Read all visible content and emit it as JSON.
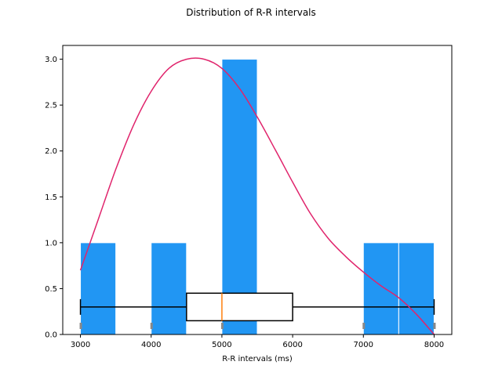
{
  "chart_data": {
    "type": "bar",
    "title": "Distribution of R-R intervals",
    "xlabel": "R-R intervals (ms)",
    "ylabel": "",
    "xlim": [
      2750,
      8250
    ],
    "ylim": [
      0,
      3.15
    ],
    "x_ticks": [
      3000,
      4000,
      5000,
      6000,
      7000,
      8000
    ],
    "y_ticks": [
      0.0,
      0.5,
      1.0,
      1.5,
      2.0,
      2.5,
      3.0
    ],
    "x_tick_labels": [
      "3000",
      "4000",
      "5000",
      "6000",
      "7000",
      "8000"
    ],
    "y_tick_labels": [
      "0.0",
      "0.5",
      "1.0",
      "1.5",
      "2.0",
      "2.5",
      "3.0"
    ],
    "grid": false,
    "histogram": {
      "bins": [
        {
          "start": 3000,
          "end": 3500,
          "count": 1
        },
        {
          "start": 3500,
          "end": 4000,
          "count": 0
        },
        {
          "start": 4000,
          "end": 4500,
          "count": 1
        },
        {
          "start": 4500,
          "end": 5000,
          "count": 0
        },
        {
          "start": 5000,
          "end": 5500,
          "count": 3
        },
        {
          "start": 5500,
          "end": 6000,
          "count": 0
        },
        {
          "start": 6000,
          "end": 6500,
          "count": 0
        },
        {
          "start": 6500,
          "end": 7000,
          "count": 0
        },
        {
          "start": 7000,
          "end": 7500,
          "count": 1
        },
        {
          "start": 7500,
          "end": 8000,
          "count": 1
        }
      ],
      "color": "#2196f3"
    },
    "kde_curve": {
      "color": "#e0246c",
      "x": [
        3000,
        3250,
        3500,
        3750,
        4000,
        4250,
        4500,
        4750,
        5000,
        5250,
        5500,
        5750,
        6000,
        6250,
        6500,
        6750,
        7000,
        7250,
        7500,
        7750,
        8000
      ],
      "y": [
        0.7,
        1.25,
        1.8,
        2.28,
        2.65,
        2.9,
        3.0,
        3.0,
        2.9,
        2.68,
        2.37,
        2.02,
        1.66,
        1.32,
        1.05,
        0.85,
        0.68,
        0.53,
        0.4,
        0.22,
        0.0
      ]
    },
    "boxplot": {
      "min": 3000,
      "q1": 4500,
      "median": 5000,
      "q3": 6000,
      "max": 8000,
      "y_center": 0.3,
      "y_height": 0.3,
      "median_color": "#ff7f0e"
    },
    "rug": {
      "values": [
        3000,
        4000,
        5000,
        7000,
        8000
      ],
      "color": "#888888"
    }
  }
}
